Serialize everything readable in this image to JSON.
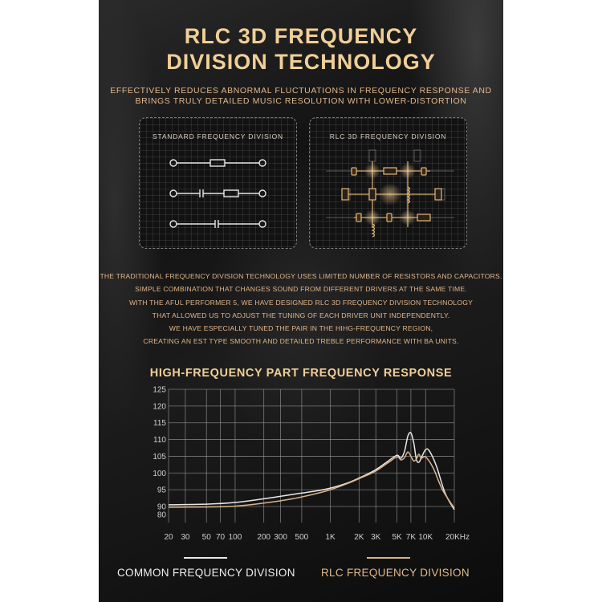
{
  "title_line1": "RLC 3D FREQUENCY",
  "title_line2": "DIVISION TECHNOLOGY",
  "subtitle_line1": "EFFECTIVELY REDUCES ABNORMAL FLUCTUATIONS IN FREQUENCY RESPONSE AND",
  "subtitle_line2": "BRINGS TRULY DETAILED MUSIC RESOLUTION WITH LOWER-DISTORTION",
  "standard_box_label": "STANDARD FREQUENCY DIVISION",
  "rlc_box_label": "RLC 3D FREQUENCY DIVISION",
  "paragraph": [
    "THE TRADITIONAL FREQUENCY DIVISION TECHNOLOGY USES LIMITED NUMBER OF RESISTORS AND CAPACITORS.",
    "SIMPLE COMBINATION THAT CHANGES SOUND FROM DIFFERENT DRIVERS AT THE SAME TIME.",
    "WITH THE AFUL PERFORMER 5, WE HAVE DESIGNED RLC 3D FREQUENCY DIVISION TECHNOLOGY",
    "THAT ALLOWED US TO ADJUST THE TUNING OF EACH DRIVER UNIT INDEPENDENTLY.",
    "WE HAVE ESPECIALLY TUNED THE PAIR IN THE HIHG-FREQUENCY REGION,",
    "CREATING AN EST TYPE SMOOTH AND DETAILED TREBLE PERFORMANCE WITH BA UNITS."
  ],
  "colors": {
    "gold": "#f0cf98",
    "common_line": "#e8e8e8",
    "rlc_line": "#d9b48a",
    "grid": "#9a9a9a"
  },
  "chart_data": {
    "type": "line",
    "title": "HIGH-FREQUENCY PART FREQUENCY RESPONSE",
    "xscale": "log",
    "xlim": [
      20,
      20000
    ],
    "ylim": [
      80,
      125
    ],
    "x_ticks": [
      {
        "value": 20,
        "label": "20"
      },
      {
        "value": 30,
        "label": "30"
      },
      {
        "value": 50,
        "label": "50"
      },
      {
        "value": 70,
        "label": "70"
      },
      {
        "value": 100,
        "label": "100"
      },
      {
        "value": 200,
        "label": "200"
      },
      {
        "value": 300,
        "label": "300"
      },
      {
        "value": 500,
        "label": "500"
      },
      {
        "value": 1000,
        "label": "1K"
      },
      {
        "value": 2000,
        "label": "2K"
      },
      {
        "value": 3000,
        "label": "3K"
      },
      {
        "value": 5000,
        "label": "5K"
      },
      {
        "value": 7000,
        "label": "7K"
      },
      {
        "value": 10000,
        "label": "10K"
      },
      {
        "value": 20000,
        "label": "20KHz"
      }
    ],
    "x_grid": [
      20,
      30,
      50,
      70,
      100,
      200,
      300,
      500,
      1000,
      2000,
      3000,
      5000,
      7000,
      10000,
      20000
    ],
    "y_ticks": [
      80,
      90,
      95,
      100,
      105,
      110,
      115,
      120,
      125
    ],
    "series": [
      {
        "name": "COMMON FREQUENCY DIVISION",
        "color": "#e8e8e8",
        "points": [
          [
            20,
            90.5
          ],
          [
            50,
            90.7
          ],
          [
            100,
            91.2
          ],
          [
            200,
            92.3
          ],
          [
            400,
            93.6
          ],
          [
            700,
            94.6
          ],
          [
            1000,
            95.5
          ],
          [
            1500,
            97
          ],
          [
            2000,
            98.5
          ],
          [
            3000,
            101
          ],
          [
            4000,
            103.5
          ],
          [
            5000,
            105.3
          ],
          [
            5500,
            104.4
          ],
          [
            6000,
            106.5
          ],
          [
            6500,
            111
          ],
          [
            7000,
            112
          ],
          [
            7500,
            109
          ],
          [
            8000,
            104
          ],
          [
            8500,
            103.2
          ],
          [
            9000,
            104.5
          ],
          [
            10000,
            107
          ],
          [
            11000,
            106.5
          ],
          [
            13000,
            102
          ],
          [
            16000,
            94
          ],
          [
            20000,
            88
          ]
        ]
      },
      {
        "name": "RLC FREQUENCY DIVISION",
        "color": "#d9b48a",
        "points": [
          [
            20,
            89.5
          ],
          [
            50,
            89.7
          ],
          [
            100,
            90.1
          ],
          [
            200,
            91
          ],
          [
            400,
            92.3
          ],
          [
            700,
            93.8
          ],
          [
            1000,
            95
          ],
          [
            1500,
            96.8
          ],
          [
            2000,
            98.3
          ],
          [
            3000,
            100.6
          ],
          [
            4000,
            103
          ],
          [
            5000,
            104.8
          ],
          [
            5500,
            103.9
          ],
          [
            6000,
            104.6
          ],
          [
            6500,
            106.3
          ],
          [
            7000,
            105
          ],
          [
            7500,
            103.6
          ],
          [
            8000,
            104.2
          ],
          [
            8500,
            105.6
          ],
          [
            9000,
            104.4
          ],
          [
            10000,
            104.8
          ],
          [
            12000,
            101.5
          ],
          [
            15000,
            95
          ],
          [
            20000,
            89
          ]
        ]
      }
    ]
  }
}
